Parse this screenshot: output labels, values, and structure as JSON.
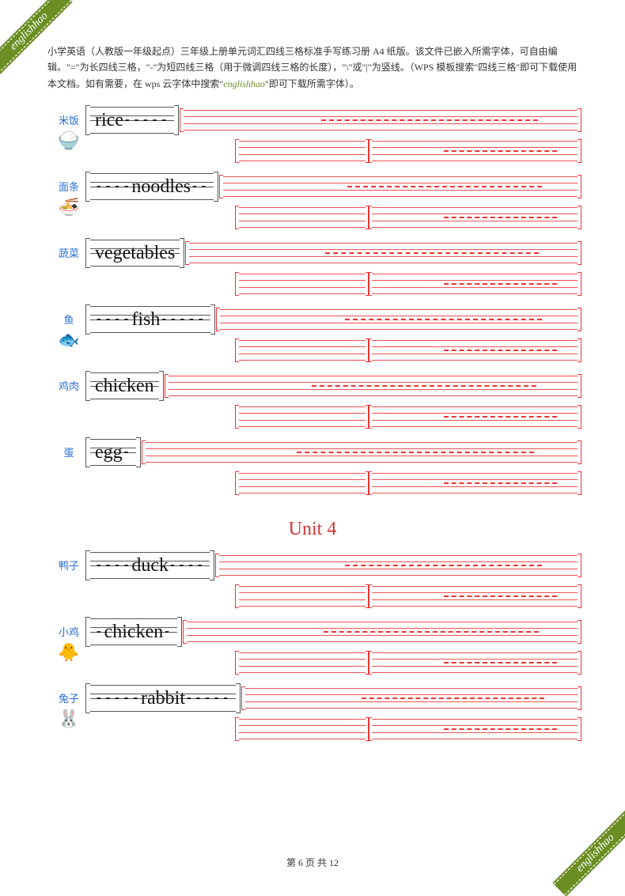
{
  "watermark": "englishhao",
  "header": "小学英语（人教版一年级起点）三年级上册单元词汇四线三格标准手写练习册 A4 纸版。该文件已嵌入所需字体，可自由编辑。\"=\"为长四线三格，\"-\"为短四线三格（用于微调四线三格的长度），\"\\\"或\"|\"为竖线。（WPS 模板搜索\"四线三格\"即可下载使用本文档。如有需要，在 wps 云字体中搜索\"",
  "header_hl": "englishhao",
  "header_tail": "\"即可下载所需字体）。",
  "unit_title": "Unit 4",
  "entries": [
    {
      "cn": "米饭",
      "icon": "🍚",
      "word": "rice",
      "pre": "",
      "post": "-----"
    },
    {
      "cn": "面条",
      "icon": "🍜",
      "word": "noodles",
      "pre": "----",
      "post": "--"
    },
    {
      "cn": "蔬菜",
      "icon": "",
      "word": "vegetables",
      "pre": "",
      "post": ""
    },
    {
      "cn": "鱼",
      "icon": "🐟",
      "word": "fish",
      "pre": "----",
      "post": "-----"
    },
    {
      "cn": "鸡肉",
      "icon": "",
      "word": "chicken",
      "pre": "",
      "post": ""
    },
    {
      "cn": "蛋",
      "icon": "",
      "word": "egg",
      "pre": "",
      "post": "-"
    }
  ],
  "entries2": [
    {
      "cn": "鸭子",
      "icon": "",
      "word": "duck",
      "pre": "----",
      "post": "----"
    },
    {
      "cn": "小鸡",
      "icon": "🐥",
      "word": "chicken",
      "pre": "-",
      "post": "-"
    },
    {
      "cn": "兔子",
      "icon": "🐰",
      "word": "rabbit",
      "pre": "-----",
      "post": "-----"
    }
  ],
  "footer_prefix": "第 ",
  "footer_page": "6",
  "footer_mid": " 页 共 ",
  "footer_total": "12",
  "colors": {
    "link": "#2a6fd6",
    "rule_red": "#e33333",
    "rule_dark": "#555555",
    "ribbon": "#6b8e23"
  }
}
